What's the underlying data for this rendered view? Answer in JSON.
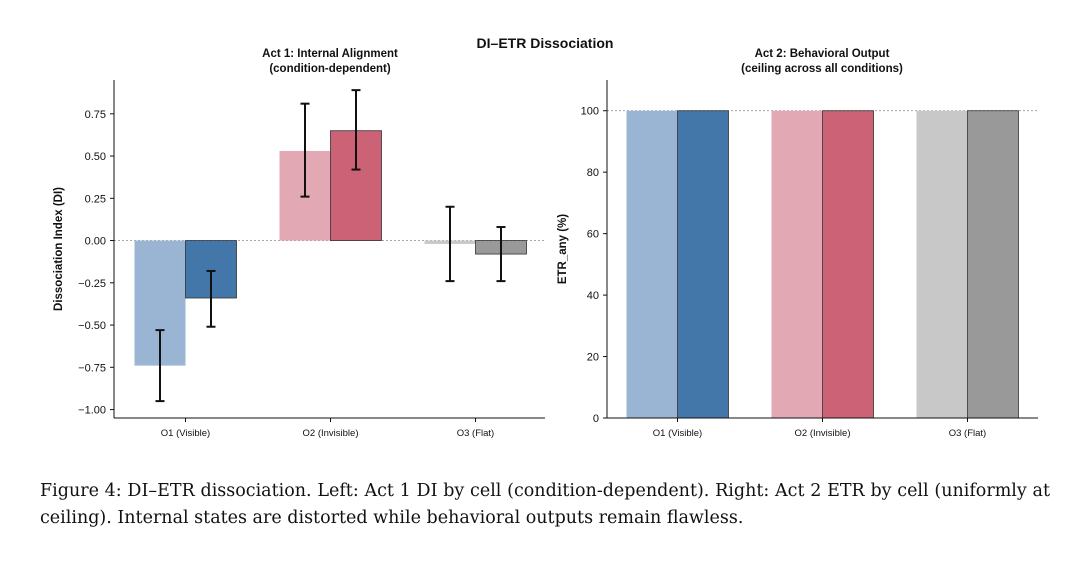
{
  "suptitle": "DI–ETR Dissociation",
  "colors": {
    "o1_light": "#9ab4d3",
    "o1_dark": "#4377aa",
    "o2_light": "#e2a8b3",
    "o2_dark": "#cc6275",
    "o3_light": "#c8c8c8",
    "o3_dark": "#999999"
  },
  "chart_data": [
    {
      "type": "bar",
      "title": "Act 1: Internal Alignment",
      "subtitle": "(condition-dependent)",
      "xlabel": "",
      "ylabel": "Dissociation Index (DI)",
      "ylim": [
        -1.05,
        0.95
      ],
      "yticks": [
        -1.0,
        -0.75,
        -0.5,
        -0.25,
        0.0,
        0.25,
        0.5,
        0.75
      ],
      "ytick_labels": [
        "−1.00",
        "−0.75",
        "−0.50",
        "−0.25",
        "0.00",
        "0.25",
        "0.50",
        "0.75"
      ],
      "reference_line": 0,
      "categories": [
        "O1 (Visible)",
        "O2 (Invisible)",
        "O3 (Flat)"
      ],
      "series": [
        {
          "values": [
            -0.74,
            0.53,
            -0.02
          ],
          "error_low": [
            -0.95,
            0.26,
            -0.24
          ],
          "error_high": [
            -0.53,
            0.81,
            0.2
          ]
        },
        {
          "values": [
            -0.34,
            0.65,
            -0.08
          ],
          "error_low": [
            -0.51,
            0.42,
            -0.24
          ],
          "error_high": [
            -0.18,
            0.89,
            0.08
          ]
        }
      ],
      "grid": false
    },
    {
      "type": "bar",
      "title": "Act 2: Behavioral Output",
      "subtitle": "(ceiling across all conditions)",
      "xlabel": "",
      "ylabel": "ETR_any (%)",
      "ylim": [
        0,
        110
      ],
      "yticks": [
        0,
        20,
        40,
        60,
        80,
        100
      ],
      "ytick_labels": [
        "0",
        "20",
        "40",
        "60",
        "80",
        "100"
      ],
      "reference_line": 100,
      "categories": [
        "O1 (Visible)",
        "O2 (Invisible)",
        "O3 (Flat)"
      ],
      "series": [
        {
          "values": [
            100,
            100,
            100
          ]
        },
        {
          "values": [
            100,
            100,
            100
          ]
        }
      ],
      "grid": false
    }
  ],
  "caption": "Figure 4: DI–ETR dissociation. Left: Act 1 DI by cell (condition-dependent). Right: Act 2 ETR by cell (uniformly at ceiling). Internal states are distorted while behavioral outputs remain flawless."
}
